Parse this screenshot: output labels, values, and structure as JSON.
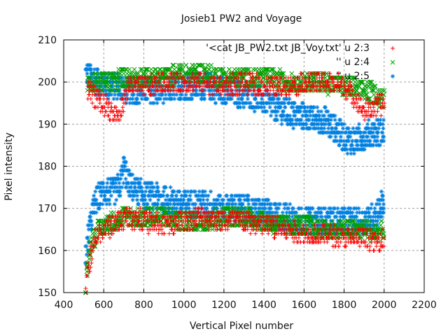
{
  "chart_data": {
    "type": "scatter",
    "title": "Josieb1 PW2 and Voyage",
    "xlabel": "Vertical Pixel number",
    "ylabel": "Pixel intensity",
    "xlim": [
      400,
      2200
    ],
    "ylim": [
      150,
      210
    ],
    "xticks": [
      "400",
      "600",
      "800",
      "1000",
      "1200",
      "1400",
      "1600",
      "1800",
      "2000",
      "2200"
    ],
    "yticks": [
      "150",
      "160",
      "170",
      "180",
      "190",
      "200",
      "210"
    ],
    "xtick_values": [
      400,
      600,
      800,
      1000,
      1200,
      1400,
      1600,
      1800,
      2000,
      2200
    ],
    "ytick_values": [
      150,
      160,
      170,
      180,
      190,
      200,
      210
    ],
    "grid": true,
    "legend_position": "top-right",
    "series": [
      {
        "name": "'<cat JB_PW2.txt JB_Voy.txt' u 2:3",
        "marker": "plus",
        "color": "#ff0000",
        "upper": {
          "x": [
            520,
            560,
            600,
            640,
            680,
            720,
            800,
            900,
            1000,
            1100,
            1200,
            1300,
            1400,
            1500,
            1600,
            1700,
            1800,
            1860,
            1900,
            1950,
            2000
          ],
          "y": [
            198,
            196,
            195,
            193,
            192,
            199,
            199,
            200,
            200,
            200,
            199,
            200,
            199,
            199,
            200,
            200,
            199,
            196,
            193,
            194,
            195
          ]
        },
        "lower": {
          "x": [
            510,
            520,
            540,
            560,
            600,
            640,
            680,
            720,
            800,
            900,
            1000,
            1100,
            1200,
            1300,
            1400,
            1500,
            1600,
            1700,
            1800,
            1900,
            1950,
            2000
          ],
          "y": [
            150,
            155,
            160,
            163,
            165,
            166,
            167,
            168,
            167,
            166,
            167,
            168,
            167,
            167,
            166,
            165,
            164,
            164,
            163,
            163,
            162,
            163
          ]
        }
      },
      {
        "name": "'' u 2:4",
        "marker": "cross",
        "color": "#00a000",
        "upper": {
          "x": [
            520,
            560,
            600,
            640,
            700,
            800,
            900,
            1000,
            1100,
            1200,
            1300,
            1400,
            1500,
            1600,
            1700,
            1800,
            1900,
            1950,
            2000
          ],
          "y": [
            199,
            200,
            200,
            200,
            201,
            201,
            201,
            202,
            202,
            201,
            201,
            201,
            200,
            200,
            200,
            199,
            198,
            197,
            196
          ]
        },
        "lower": {
          "x": [
            510,
            520,
            540,
            560,
            600,
            640,
            700,
            800,
            900,
            1000,
            1100,
            1200,
            1300,
            1400,
            1500,
            1600,
            1700,
            1800,
            1900,
            1950,
            2000
          ],
          "y": [
            152,
            158,
            162,
            164,
            166,
            167,
            168,
            168,
            168,
            167,
            167,
            168,
            168,
            167,
            166,
            166,
            165,
            165,
            165,
            164,
            165
          ]
        }
      },
      {
        "name": "'' u 2:5",
        "marker": "star",
        "color": "#0080e0",
        "upper": {
          "x": [
            510,
            540,
            580,
            620,
            680,
            720,
            800,
            900,
            1000,
            1100,
            1200,
            1300,
            1400,
            1450,
            1500,
            1550,
            1600,
            1650,
            1700,
            1750,
            1800,
            1850,
            1900,
            1950,
            2000
          ],
          "y": [
            202,
            201,
            200,
            199,
            199,
            198,
            198,
            198,
            199,
            199,
            198,
            197,
            196,
            194,
            193,
            192,
            192,
            191,
            191,
            189,
            187,
            186,
            187,
            188,
            188
          ]
        },
        "lower": {
          "x": [
            510,
            520,
            540,
            560,
            600,
            640,
            680,
            700,
            720,
            800,
            900,
            1000,
            1100,
            1200,
            1300,
            1400,
            1500,
            1600,
            1700,
            1800,
            1900,
            1950,
            2000
          ],
          "y": [
            158,
            162,
            168,
            172,
            174,
            174,
            175,
            180,
            176,
            173,
            172,
            171,
            171,
            170,
            170,
            169,
            168,
            167,
            167,
            167,
            167,
            168,
            172
          ]
        }
      }
    ]
  }
}
